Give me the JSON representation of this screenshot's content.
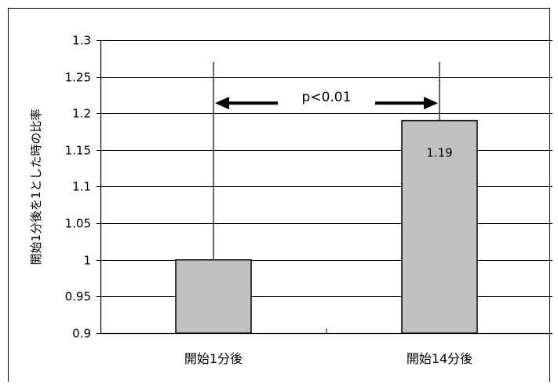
{
  "chart_data": {
    "type": "bar",
    "title": "",
    "xlabel": "",
    "ylabel": "開始1分後を1とした時の比率",
    "categories": [
      "開始1分後",
      "開始14分後"
    ],
    "values": [
      1.0,
      1.19
    ],
    "data_labels": [
      "",
      "1.19"
    ],
    "ylim": [
      0.9,
      1.3
    ],
    "yticks": [
      0.9,
      0.95,
      1,
      1.05,
      1.1,
      1.15,
      1.2,
      1.25,
      1.3
    ],
    "ytick_labels": [
      "0.9",
      "0.95",
      "1",
      "1.05",
      "1.1",
      "1.15",
      "1.2",
      "1.25",
      "1.3"
    ],
    "grid": true,
    "legend": "none",
    "bar_color": "#c0c0c0",
    "annotation": {
      "text": "p<0.01",
      "type": "significance-bracket",
      "from_category": 0,
      "to_category": 1,
      "line_top_value": 1.27,
      "arrow_value": 1.214
    }
  }
}
